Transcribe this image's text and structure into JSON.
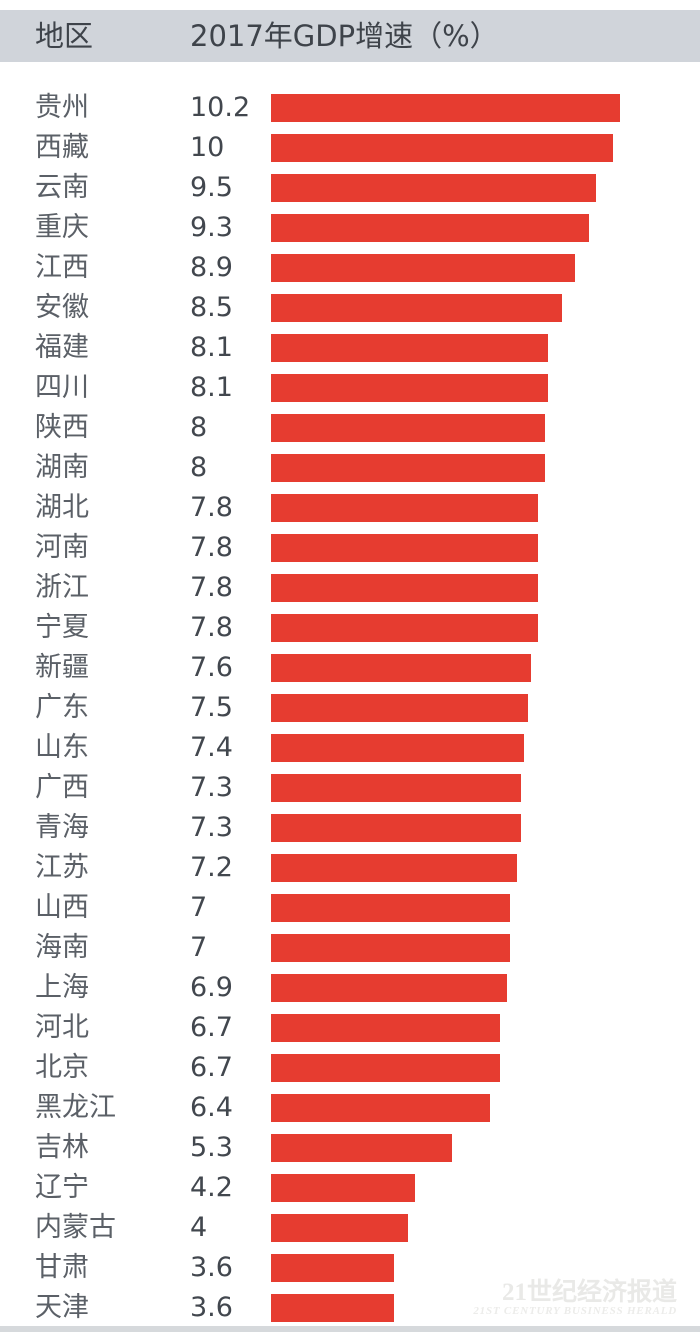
{
  "header": {
    "region_label": "地区",
    "value_label": "2017年GDP增速（%）"
  },
  "chart_data": {
    "type": "bar",
    "orientation": "horizontal",
    "title": "2017年GDP增速（%）",
    "xlabel": "",
    "ylabel": "地区",
    "unit": "%",
    "xlim": [
      0,
      10.2
    ],
    "grid": false,
    "legend": "none",
    "categories": [
      "贵州",
      "西藏",
      "云南",
      "重庆",
      "江西",
      "安徽",
      "福建",
      "四川",
      "陕西",
      "湖南",
      "湖北",
      "河南",
      "浙江",
      "宁夏",
      "新疆",
      "广东",
      "山东",
      "广西",
      "青海",
      "江苏",
      "山西",
      "海南",
      "上海",
      "河北",
      "北京",
      "黑龙江",
      "吉林",
      "辽宁",
      "内蒙古",
      "甘肃",
      "天津"
    ],
    "values": [
      10.2,
      10,
      9.5,
      9.3,
      8.9,
      8.5,
      8.1,
      8.1,
      8,
      8,
      7.8,
      7.8,
      7.8,
      7.8,
      7.6,
      7.5,
      7.4,
      7.3,
      7.3,
      7.2,
      7,
      7,
      6.9,
      6.7,
      6.7,
      6.4,
      5.3,
      4.2,
      4,
      3.6,
      3.6
    ],
    "bar_color": "#e63c30"
  },
  "colors": {
    "bar": "#e63c30",
    "header_bg": "#d0d4da",
    "header_text": "#3e434a",
    "region_text": "#5b6067",
    "value_text": "#42474e"
  },
  "watermark": {
    "line1": "21世纪经济报道",
    "line2": "21ST CENTURY BUSINESS HERALD"
  }
}
